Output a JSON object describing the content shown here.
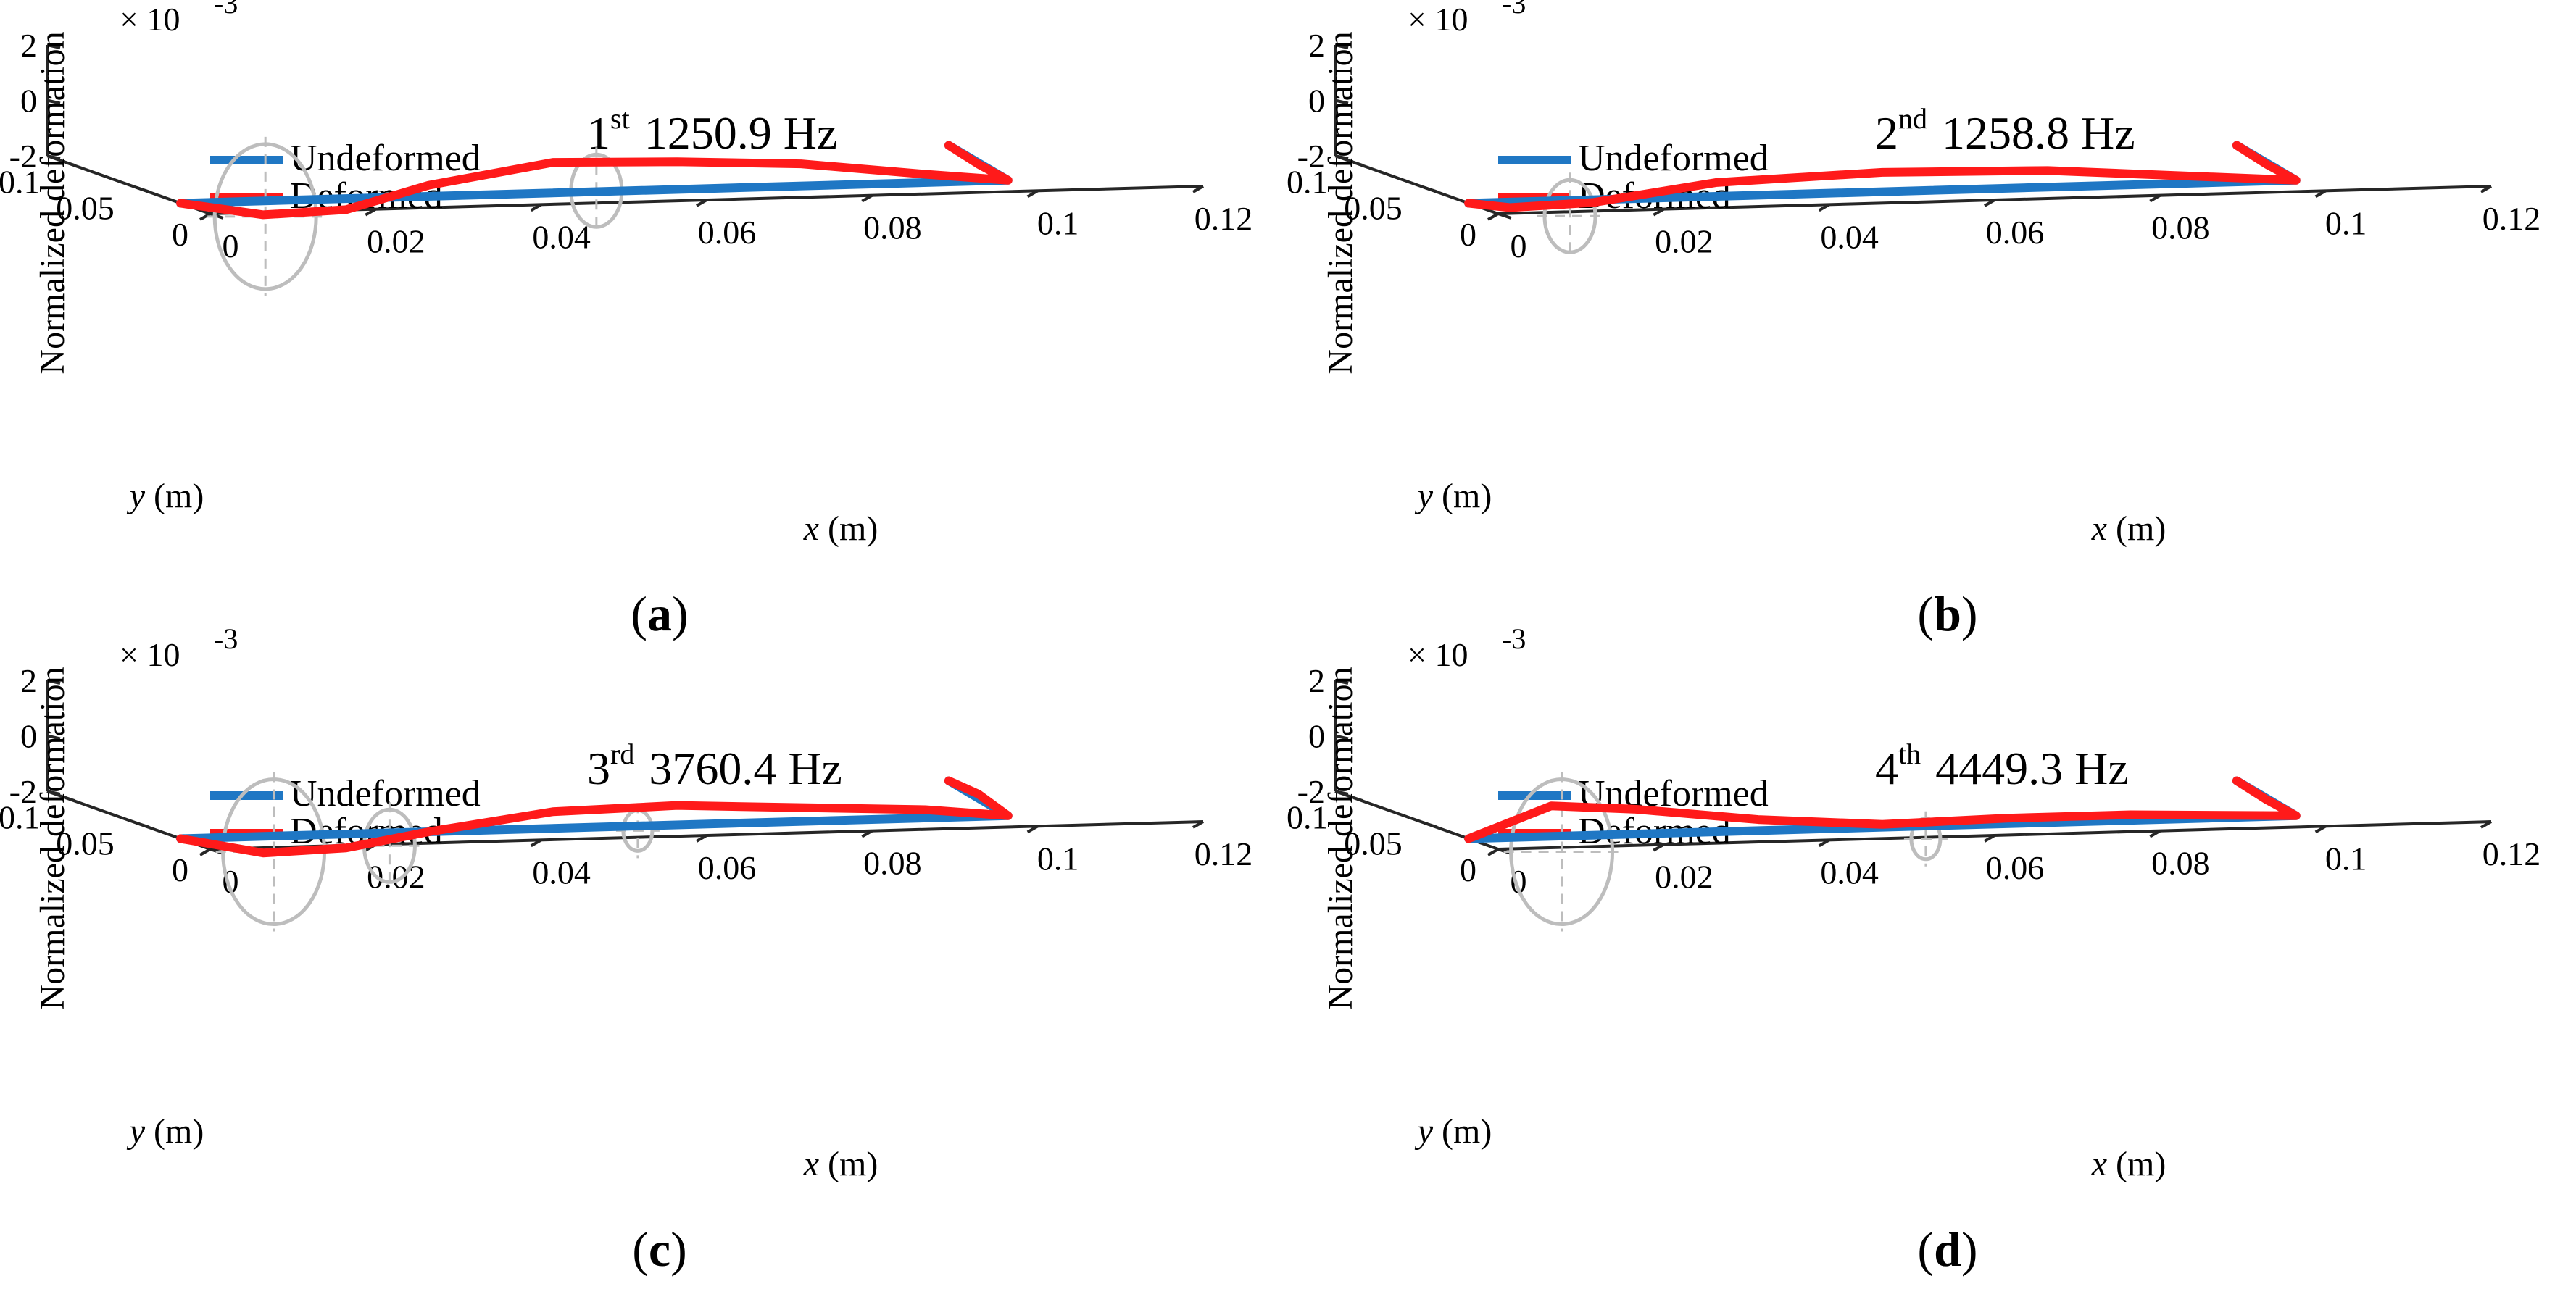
{
  "chart_data": [
    {
      "type": "line",
      "subplot_label": "a",
      "mode_ordinal": "1",
      "mode_suffix": "st",
      "frequency": "1250.9 Hz",
      "zlabel": "Normalized deformation",
      "z_exponent": "× 10",
      "z_exponent_power": "-3",
      "xlabel_var": "x",
      "xlabel_unit": "(m)",
      "ylabel_var": "y",
      "ylabel_unit": "(m)",
      "xticks": [
        "0",
        "0.02",
        "0.04",
        "0.06",
        "0.08",
        "0.1",
        "0.12"
      ],
      "yticks": [
        "0",
        "0.05",
        "0.1"
      ],
      "zticks": [
        "-2",
        "0",
        "2"
      ],
      "xlim": [
        0,
        0.12
      ],
      "ylim": [
        0,
        0.1
      ],
      "zlim": [
        -2,
        2
      ],
      "legend": [
        "Undeformed",
        "Deformed"
      ],
      "series": [
        {
          "name": "Undeformed",
          "color": "#1f77c4",
          "points": [
            [
              0,
              0.02,
              -2
            ],
            [
              0.1,
              0.02,
              -2
            ],
            [
              0.1,
              0.06,
              -1.5
            ]
          ]
        },
        {
          "name": "Deformed",
          "color": "#ff1a1a",
          "points": [
            [
              0,
              0.02,
              -2
            ],
            [
              0.01,
              0.02,
              -2.5
            ],
            [
              0.02,
              0.02,
              -2.4
            ],
            [
              0.03,
              0.02,
              -1.6
            ],
            [
              0.045,
              0.02,
              -0.9
            ],
            [
              0.06,
              0.02,
              -1.0
            ],
            [
              0.075,
              0.02,
              -1.2
            ],
            [
              0.09,
              0.02,
              -1.7
            ],
            [
              0.1,
              0.02,
              -2.0
            ],
            [
              0.1,
              0.04,
              -1.8
            ],
            [
              0.1,
              0.06,
              -1.5
            ]
          ]
        }
      ],
      "rings": [
        {
          "x": 0.005,
          "y": 0.02,
          "z": -2.0,
          "size": "large"
        },
        {
          "x": 0.045,
          "y": 0.02,
          "z": -1.4,
          "size": "small"
        }
      ]
    },
    {
      "type": "line",
      "subplot_label": "b",
      "mode_ordinal": "2",
      "mode_suffix": "nd",
      "frequency": "1258.8 Hz",
      "zlabel": "Normalized deformation",
      "z_exponent": "× 10",
      "z_exponent_power": "-3",
      "xlabel_var": "x",
      "xlabel_unit": "(m)",
      "ylabel_var": "y",
      "ylabel_unit": "(m)",
      "xticks": [
        "0",
        "0.02",
        "0.04",
        "0.06",
        "0.08",
        "0.1",
        "0.12"
      ],
      "yticks": [
        "0",
        "0.05",
        "0.1"
      ],
      "zticks": [
        "-2",
        "0",
        "2"
      ],
      "xlim": [
        0,
        0.12
      ],
      "ylim": [
        0,
        0.1
      ],
      "zlim": [
        -2,
        2
      ],
      "legend": [
        "Undeformed",
        "Deformed"
      ],
      "series": [
        {
          "name": "Undeformed",
          "color": "#1f77c4",
          "points": [
            [
              0,
              0.02,
              -2
            ],
            [
              0.1,
              0.02,
              -2
            ],
            [
              0.1,
              0.06,
              -1.5
            ]
          ]
        },
        {
          "name": "Deformed",
          "color": "#ff1a1a",
          "points": [
            [
              0,
              0.02,
              -2
            ],
            [
              0.005,
              0.02,
              -2.2
            ],
            [
              0.015,
              0.02,
              -2.1
            ],
            [
              0.03,
              0.02,
              -1.5
            ],
            [
              0.05,
              0.02,
              -1.3
            ],
            [
              0.07,
              0.02,
              -1.4
            ],
            [
              0.09,
              0.02,
              -1.8
            ],
            [
              0.1,
              0.02,
              -2.0
            ],
            [
              0.1,
              0.04,
              -1.8
            ],
            [
              0.1,
              0.06,
              -1.5
            ]
          ]
        }
      ],
      "rings": [
        {
          "x": 0.007,
          "y": 0.02,
          "z": -2.0,
          "size": "small"
        }
      ]
    },
    {
      "type": "line",
      "subplot_label": "c",
      "mode_ordinal": "3",
      "mode_suffix": "rd",
      "frequency": "3760.4 Hz",
      "zlabel": "Normalized deformation",
      "z_exponent": "× 10",
      "z_exponent_power": "-3",
      "xlabel_var": "x",
      "xlabel_unit": "(m)",
      "ylabel_var": "y",
      "ylabel_unit": "(m)",
      "xticks": [
        "0",
        "0.02",
        "0.04",
        "0.06",
        "0.08",
        "0.1",
        "0.12"
      ],
      "yticks": [
        "0",
        "0.05",
        "0.1"
      ],
      "zticks": [
        "-2",
        "0",
        "2"
      ],
      "xlim": [
        0,
        0.12
      ],
      "ylim": [
        0,
        0.1
      ],
      "zlim": [
        -2,
        2
      ],
      "legend": [
        "Undeformed",
        "Deformed"
      ],
      "series": [
        {
          "name": "Undeformed",
          "color": "#1f77c4",
          "points": [
            [
              0,
              0.02,
              -2
            ],
            [
              0.1,
              0.02,
              -2
            ],
            [
              0.1,
              0.06,
              -1.5
            ]
          ]
        },
        {
          "name": "Deformed",
          "color": "#ff1a1a",
          "points": [
            [
              0,
              0.02,
              -2
            ],
            [
              0.01,
              0.02,
              -2.6
            ],
            [
              0.02,
              0.02,
              -2.5
            ],
            [
              0.03,
              0.02,
              -2.0
            ],
            [
              0.045,
              0.02,
              -1.4
            ],
            [
              0.06,
              0.02,
              -1.3
            ],
            [
              0.075,
              0.02,
              -1.5
            ],
            [
              0.09,
              0.02,
              -1.7
            ],
            [
              0.1,
              0.02,
              -2.0
            ],
            [
              0.1,
              0.04,
              -1.6
            ],
            [
              0.1,
              0.06,
              -1.5
            ]
          ]
        }
      ],
      "rings": [
        {
          "x": 0.006,
          "y": 0.02,
          "z": -2.0,
          "size": "large"
        },
        {
          "x": 0.02,
          "y": 0.02,
          "z": -1.9,
          "size": "small"
        },
        {
          "x": 0.05,
          "y": 0.02,
          "z": -1.6,
          "size": "tiny"
        }
      ]
    },
    {
      "type": "line",
      "subplot_label": "d",
      "mode_ordinal": "4",
      "mode_suffix": "th",
      "frequency": "4449.3 Hz",
      "zlabel": "Normalized deformation",
      "z_exponent": "× 10",
      "z_exponent_power": "-3",
      "xlabel_var": "x",
      "xlabel_unit": "(m)",
      "ylabel_var": "y",
      "ylabel_unit": "(m)",
      "xticks": [
        "0",
        "0.02",
        "0.04",
        "0.06",
        "0.08",
        "0.1",
        "0.12"
      ],
      "yticks": [
        "0",
        "0.05",
        "0.1"
      ],
      "zticks": [
        "-2",
        "0",
        "2"
      ],
      "xlim": [
        0,
        0.12
      ],
      "ylim": [
        0,
        0.1
      ],
      "zlim": [
        -2,
        2
      ],
      "legend": [
        "Undeformed",
        "Deformed"
      ],
      "series": [
        {
          "name": "Undeformed",
          "color": "#1f77c4",
          "points": [
            [
              0,
              0.02,
              -2
            ],
            [
              0.1,
              0.02,
              -2
            ],
            [
              0.1,
              0.06,
              -1.5
            ]
          ]
        },
        {
          "name": "Deformed",
          "color": "#ff1a1a",
          "points": [
            [
              0,
              0.02,
              -2
            ],
            [
              0.01,
              0.02,
              -0.9
            ],
            [
              0.02,
              0.02,
              -1.1
            ],
            [
              0.035,
              0.02,
              -1.6
            ],
            [
              0.05,
              0.02,
              -1.9
            ],
            [
              0.065,
              0.02,
              -1.8
            ],
            [
              0.08,
              0.02,
              -1.8
            ],
            [
              0.1,
              0.02,
              -2.0
            ],
            [
              0.1,
              0.04,
              -1.8
            ],
            [
              0.1,
              0.06,
              -1.5
            ]
          ]
        }
      ],
      "rings": [
        {
          "x": 0.006,
          "y": 0.02,
          "z": -2.0,
          "size": "large"
        },
        {
          "x": 0.05,
          "y": 0.02,
          "z": -1.9,
          "size": "tiny"
        }
      ]
    }
  ]
}
